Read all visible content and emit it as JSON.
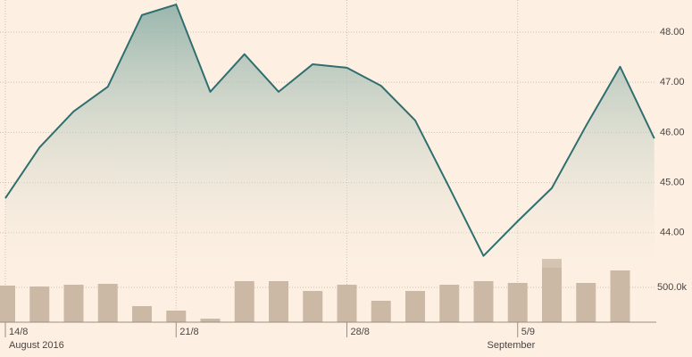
{
  "chart_data": [
    {
      "type": "line",
      "categories": [
        "14/8",
        null,
        null,
        null,
        null,
        "21/8",
        null,
        null,
        null,
        null,
        "28/8",
        null,
        null,
        null,
        null,
        "5/9",
        null,
        null,
        null,
        null
      ],
      "values": [
        44.69,
        45.7,
        46.42,
        46.91,
        48.34,
        48.55,
        46.81,
        47.56,
        46.81,
        47.36,
        47.29,
        46.93,
        46.24,
        44.9,
        43.54,
        44.23,
        44.89,
        46.13,
        47.31,
        45.88
      ],
      "color": "#2f6f6f",
      "ylim": [
        43.0,
        48.64
      ],
      "yticks": [
        {
          "value": 44,
          "label": "44.00"
        },
        {
          "value": 45,
          "label": "45.00"
        },
        {
          "value": 46,
          "label": "46.00"
        },
        {
          "value": 47,
          "label": "47.00"
        },
        {
          "value": 48,
          "label": "48.00"
        }
      ],
      "grid": true,
      "period_labels": [
        {
          "label": "August 2016",
          "at": 0
        },
        {
          "label": "September",
          "at": 14
        }
      ]
    },
    {
      "type": "bar",
      "values": [
        526000,
        513000,
        538000,
        551000,
        231000,
        167000,
        51000,
        590000,
        590000,
        449000,
        538000,
        308000,
        449000,
        538000,
        590000,
        564000,
        910000,
        564000,
        744000,
        null
      ],
      "color": "#cbb9a6",
      "ylim": [
        0,
        1000000
      ],
      "yticks": [
        {
          "value": 500000,
          "label": "500.0k"
        }
      ]
    }
  ]
}
